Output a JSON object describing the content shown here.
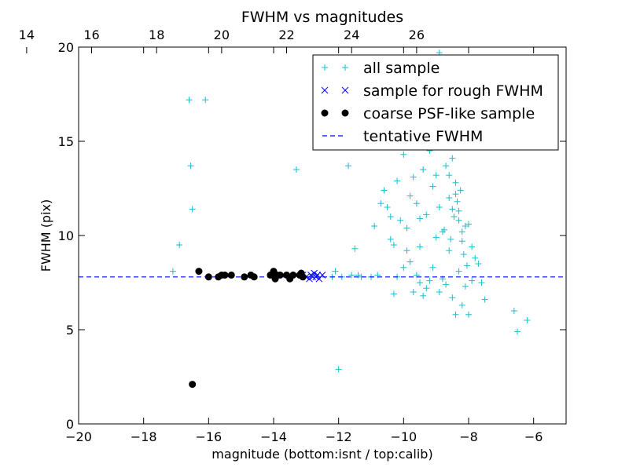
{
  "chart_data": {
    "type": "scatter",
    "title": "FWHM vs magnitudes",
    "xlabel": "magnitude (bottom:isnt / top:calib)",
    "ylabel": "FWHM (pix)",
    "xlim": [
      -20,
      -5
    ],
    "ylim": [
      0,
      20
    ],
    "x_ticks": [
      -20,
      -18,
      -16,
      -14,
      -12,
      -10,
      -8,
      -6
    ],
    "x_tick_labels": [
      "−20",
      "−18",
      "−16",
      "−14",
      "−12",
      "−10",
      "−8",
      "−6"
    ],
    "y_ticks": [
      0,
      5,
      10,
      15,
      20
    ],
    "y_tick_labels": [
      "0",
      "5",
      "10",
      "15",
      "20"
    ],
    "top_axis": {
      "ticks": [
        14,
        16,
        18,
        20,
        22,
        24,
        26
      ],
      "tick_labels": [
        "14",
        "16",
        "18",
        "20",
        "22",
        "24",
        "26"
      ],
      "offset": 35.6
    },
    "grid": false,
    "legend_position": "top-right",
    "series": [
      {
        "name": "all sample",
        "marker": "+",
        "color": "#17becf",
        "points": [
          [
            -17.1,
            8.1
          ],
          [
            -16.9,
            9.5
          ],
          [
            -16.6,
            17.2
          ],
          [
            -16.55,
            13.7
          ],
          [
            -16.5,
            11.4
          ],
          [
            -16.1,
            17.2
          ],
          [
            -13.3,
            13.5
          ],
          [
            -11.9,
            7.8
          ],
          [
            -11.6,
            7.9
          ],
          [
            -11.5,
            9.3
          ],
          [
            -11.7,
            13.7
          ],
          [
            -12.2,
            7.8
          ],
          [
            -12.1,
            8.1
          ],
          [
            -12.0,
            2.9
          ],
          [
            -11.4,
            7.9
          ],
          [
            -11.3,
            7.8
          ],
          [
            -11.0,
            7.8
          ],
          [
            -10.8,
            7.9
          ],
          [
            -10.9,
            10.5
          ],
          [
            -10.6,
            12.4
          ],
          [
            -10.7,
            11.7
          ],
          [
            -10.5,
            11.5
          ],
          [
            -10.4,
            11.0
          ],
          [
            -10.3,
            9.5
          ],
          [
            -10.2,
            12.9
          ],
          [
            -10.0,
            14.3
          ],
          [
            -10.1,
            10.8
          ],
          [
            -9.9,
            10.4
          ],
          [
            -9.8,
            12.1
          ],
          [
            -9.7,
            13.1
          ],
          [
            -9.6,
            11.7
          ],
          [
            -9.5,
            10.9
          ],
          [
            -9.4,
            13.5
          ],
          [
            -9.3,
            11.1
          ],
          [
            -9.2,
            14.5
          ],
          [
            -9.1,
            12.6
          ],
          [
            -9.0,
            13.2
          ],
          [
            -8.9,
            11.5
          ],
          [
            -8.8,
            10.2
          ],
          [
            -8.7,
            13.7
          ],
          [
            -8.6,
            12.0
          ],
          [
            -8.5,
            11.4
          ],
          [
            -8.4,
            12.2
          ],
          [
            -8.3,
            10.8
          ],
          [
            -8.2,
            9.7
          ],
          [
            -8.1,
            10.5
          ],
          [
            -8.0,
            10.6
          ],
          [
            -7.9,
            9.4
          ],
          [
            -7.8,
            8.8
          ],
          [
            -7.7,
            8.5
          ],
          [
            -7.6,
            7.5
          ],
          [
            -10.4,
            9.8
          ],
          [
            -10.2,
            7.8
          ],
          [
            -10.0,
            8.3
          ],
          [
            -9.8,
            8.6
          ],
          [
            -9.6,
            7.9
          ],
          [
            -9.5,
            7.5
          ],
          [
            -9.3,
            7.2
          ],
          [
            -9.1,
            8.3
          ],
          [
            -8.9,
            7.0
          ],
          [
            -8.7,
            7.4
          ],
          [
            -8.5,
            6.7
          ],
          [
            -8.4,
            5.8
          ],
          [
            -8.2,
            6.3
          ],
          [
            -8.0,
            5.8
          ],
          [
            -7.5,
            6.6
          ],
          [
            -6.6,
            6.0
          ],
          [
            -6.5,
            4.9
          ],
          [
            -6.2,
            5.5
          ],
          [
            -10.3,
            6.9
          ],
          [
            -9.7,
            7.0
          ],
          [
            -9.4,
            6.8
          ],
          [
            -9.2,
            7.6
          ],
          [
            -8.8,
            7.7
          ],
          [
            -8.6,
            9.2
          ],
          [
            -8.3,
            8.1
          ],
          [
            -8.1,
            7.3
          ],
          [
            -7.9,
            7.6
          ],
          [
            -9.9,
            9.2
          ],
          [
            -9.5,
            9.4
          ],
          [
            -9.0,
            9.9
          ],
          [
            -8.75,
            10.3
          ],
          [
            -8.55,
            9.8
          ],
          [
            -8.45,
            11.0
          ],
          [
            -8.35,
            11.8
          ],
          [
            -8.25,
            12.4
          ],
          [
            -8.15,
            9.0
          ],
          [
            -8.05,
            8.4
          ],
          [
            -8.6,
            13.2
          ],
          [
            -8.4,
            12.8
          ],
          [
            -8.3,
            11.3
          ],
          [
            -8.2,
            10.2
          ],
          [
            -8.5,
            14.1
          ],
          [
            -8.8,
            14.8
          ],
          [
            -9.3,
            15.6
          ],
          [
            -9.0,
            14.9
          ],
          [
            -9.6,
            16.8
          ],
          [
            -9.2,
            18.1
          ],
          [
            -8.9,
            19.7
          ],
          [
            -9.1,
            17.4
          ],
          [
            -8.7,
            16.2
          ],
          [
            -8.5,
            16.9
          ],
          [
            -9.4,
            16.1
          ],
          [
            -9.8,
            15.5
          ],
          [
            -10.1,
            15.9
          ]
        ]
      },
      {
        "name": "sample for rough FWHM",
        "marker": "x",
        "color": "#0000ff",
        "points": [
          [
            -13.1,
            7.9
          ],
          [
            -13.0,
            7.8
          ],
          [
            -12.9,
            7.7
          ],
          [
            -12.85,
            7.9
          ],
          [
            -12.8,
            7.8
          ],
          [
            -12.75,
            8.0
          ],
          [
            -12.7,
            7.8
          ],
          [
            -12.65,
            7.9
          ],
          [
            -12.6,
            7.7
          ],
          [
            -12.5,
            7.9
          ]
        ]
      },
      {
        "name": "coarse PSF-like sample",
        "marker": "o",
        "color": "#000000",
        "points": [
          [
            -16.3,
            8.1
          ],
          [
            -16.0,
            7.8
          ],
          [
            -15.7,
            7.8
          ],
          [
            -15.6,
            7.9
          ],
          [
            -15.5,
            7.9
          ],
          [
            -15.3,
            7.9
          ],
          [
            -14.9,
            7.8
          ],
          [
            -14.7,
            7.9
          ],
          [
            -14.6,
            7.8
          ],
          [
            -14.1,
            7.9
          ],
          [
            -14.0,
            8.1
          ],
          [
            -13.95,
            7.7
          ],
          [
            -13.9,
            7.9
          ],
          [
            -13.8,
            7.9
          ],
          [
            -13.6,
            7.9
          ],
          [
            -13.5,
            7.7
          ],
          [
            -13.4,
            7.9
          ],
          [
            -13.2,
            7.9
          ],
          [
            -13.15,
            8.0
          ],
          [
            -13.1,
            7.8
          ],
          [
            -16.5,
            2.1
          ]
        ]
      },
      {
        "name": "tentative FWHM",
        "marker": "--",
        "color": "#0000ff",
        "y": 7.8
      }
    ]
  }
}
